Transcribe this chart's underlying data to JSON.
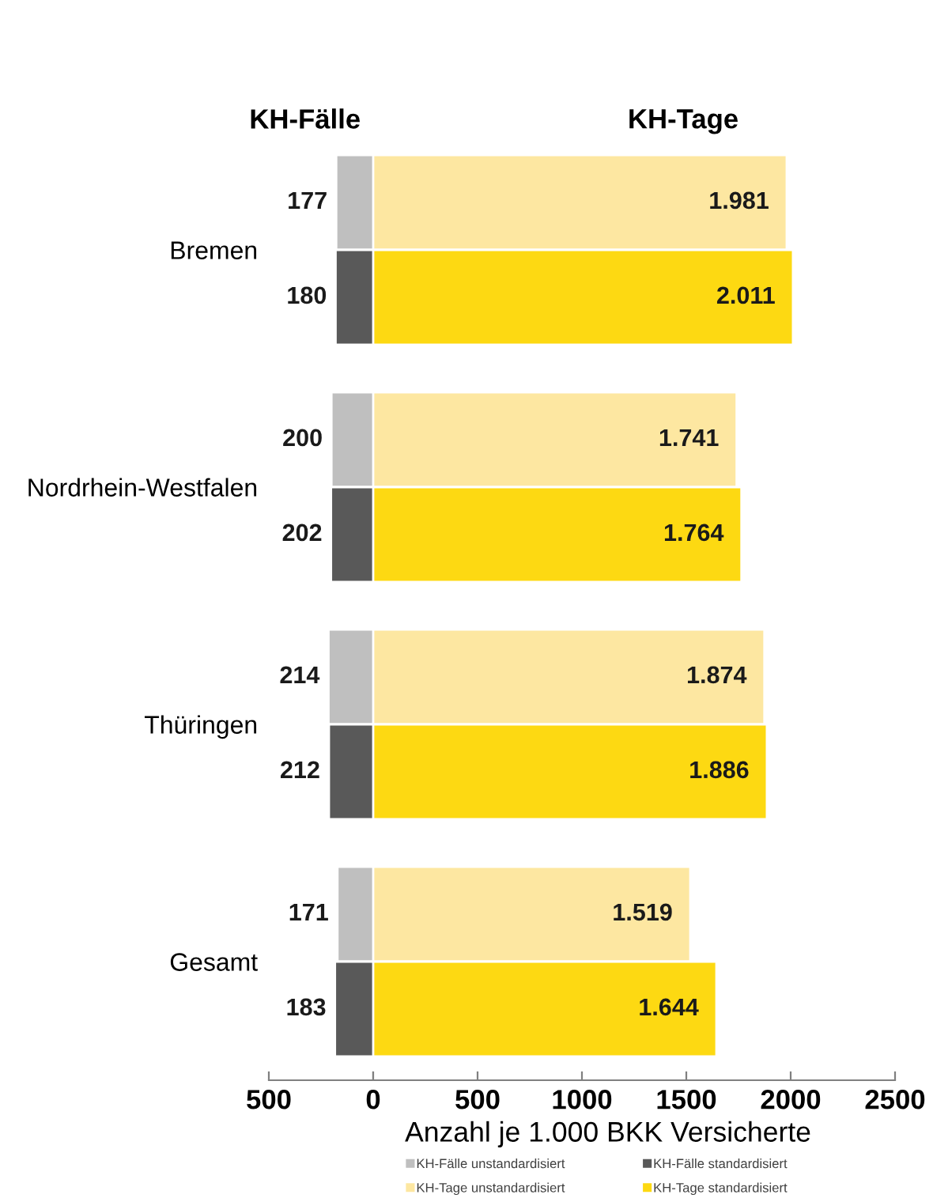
{
  "chart_data": [
    {
      "type": "bar",
      "orientation": "horizontal",
      "title": "KH-Fälle",
      "categories": [
        "Bremen",
        "Nordrhein-Westfalen",
        "Thüringen",
        "Gesamt"
      ],
      "series": [
        {
          "name": "KH-Fälle unstandardisiert",
          "color": "#bfbfbf",
          "values": [
            177,
            200,
            214,
            171
          ]
        },
        {
          "name": "KH-Fälle standardisiert",
          "color": "#595959",
          "values": [
            180,
            202,
            212,
            183
          ]
        }
      ],
      "data_labels": true,
      "xlim": [
        500,
        0
      ],
      "xticks": [
        500,
        0
      ],
      "legend": "bottom"
    },
    {
      "type": "bar",
      "orientation": "horizontal",
      "title": "KH-Tage",
      "categories": [
        "Bremen",
        "Nordrhein-Westfalen",
        "Thüringen",
        "Gesamt"
      ],
      "series": [
        {
          "name": "KH-Tage unstandardisiert",
          "color": "#fde7a1",
          "values": [
            1981,
            1741,
            1874,
            1519
          ],
          "value_labels": [
            "1.981",
            "1.741",
            "1.874",
            "1.519"
          ]
        },
        {
          "name": "KH-Tage standardisiert",
          "color": "#fdd912",
          "values": [
            2011,
            1764,
            1886,
            1644
          ],
          "value_labels": [
            "2.011",
            "1.764",
            "1.886",
            "1.644"
          ]
        }
      ],
      "xlim": [
        0,
        2500
      ],
      "xticks": [
        {
          "value": 0,
          "label": null
        },
        500,
        1000,
        1500,
        2000,
        2500
      ],
      "xlabel": "Anzahl je 1.000 BKK Versicherte",
      "tick_labels": "x",
      "legend": "bottom"
    }
  ]
}
